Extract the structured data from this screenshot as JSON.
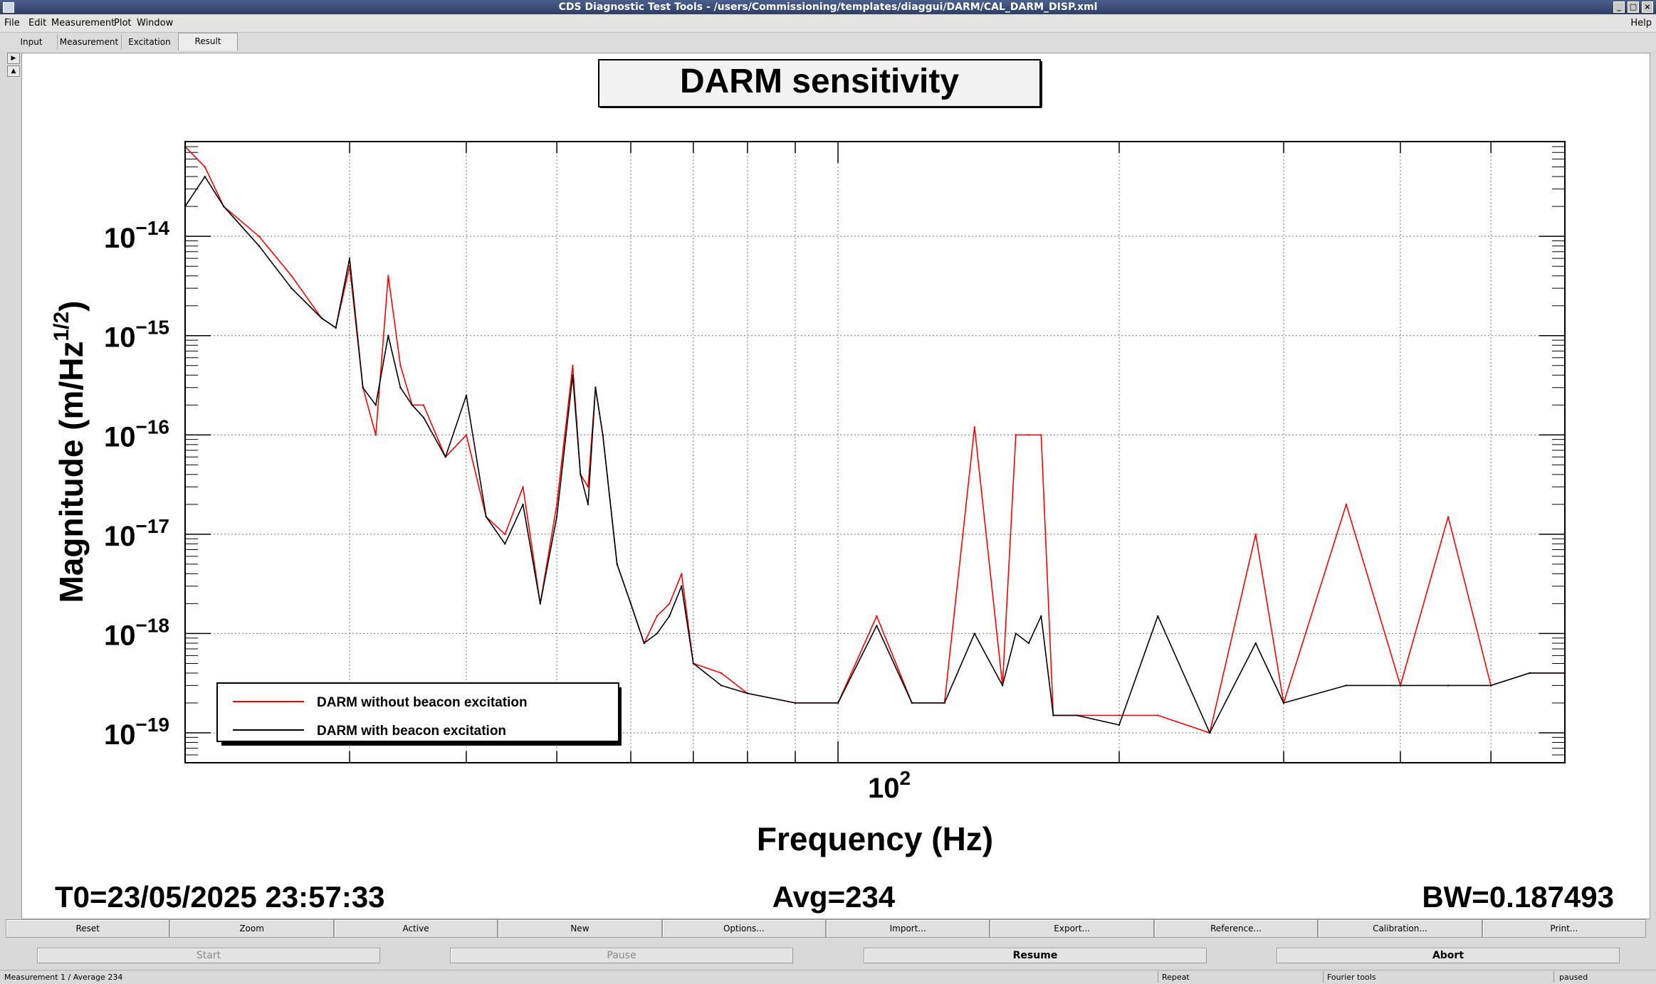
{
  "window": {
    "title": "CDS Diagnostic Test Tools - /users/Commissioning/templates/diaggui/DARM/CAL_DARM_DISP.xml"
  },
  "menu": {
    "items": [
      "File",
      "Edit",
      "Measurement",
      "Plot",
      "Window"
    ],
    "help": "Help"
  },
  "tabs": [
    "Input",
    "Measurement",
    "Excitation",
    "Result"
  ],
  "plot": {
    "title": "DARM sensitivity",
    "xlabel": "Frequency (Hz)",
    "ylabel_main": "Magnitude (m/Hz",
    "ylabel_sup": "1/2",
    "ylabel_close": ")",
    "x_tick_base": "10",
    "x_tick_exp": "2",
    "y_tick_base": "10",
    "y_tick_exps": [
      "−14",
      "−15",
      "−16",
      "−17",
      "−18",
      "−19"
    ],
    "info": {
      "t0": "T0=23/05/2025 23:57:33",
      "avg": "Avg=234",
      "bw": "BW=0.187493"
    }
  },
  "chart_data": {
    "type": "line",
    "title": "DARM sensitivity",
    "xlabel": "Frequency (Hz)",
    "ylabel": "Magnitude (m/Hz^1/2)",
    "xscale": "log",
    "yscale": "log",
    "xlim": [
      20,
      600
    ],
    "ylim": [
      5e-20,
      9e-14
    ],
    "grid": true,
    "legend_position": "bottom-left",
    "series": [
      {
        "name": "DARM without beacon excitation",
        "color": "#ff0000",
        "x": [
          20,
          21,
          22,
          24,
          26,
          28,
          29,
          30,
          31,
          32,
          33,
          34,
          35,
          36,
          38,
          40,
          42,
          44,
          46,
          48,
          50,
          52,
          53,
          54,
          55,
          56,
          58,
          60,
          62,
          64,
          66,
          68,
          70,
          75,
          80,
          90,
          100,
          110,
          120,
          130,
          140,
          150,
          155,
          160,
          165,
          170,
          180,
          200,
          220,
          250,
          280,
          300,
          350,
          400,
          450,
          500,
          550,
          600
        ],
        "y": [
          8e-14,
          5e-14,
          2e-14,
          1e-14,
          4e-15,
          1.5e-15,
          1.2e-15,
          5e-15,
          3e-16,
          1e-16,
          4e-15,
          5e-16,
          2e-16,
          2e-16,
          6e-17,
          1e-16,
          1.5e-17,
          1e-17,
          3e-17,
          2e-18,
          2e-17,
          5e-16,
          4e-17,
          3e-17,
          3e-16,
          1e-16,
          5e-18,
          2e-18,
          8e-19,
          1.5e-18,
          2e-18,
          4e-18,
          5e-19,
          4e-19,
          2.5e-19,
          2e-19,
          2e-19,
          1.5e-18,
          2e-19,
          2e-19,
          1.2e-16,
          3e-19,
          1e-16,
          1e-16,
          1e-16,
          1.5e-19,
          1.5e-19,
          1.5e-19,
          1.5e-19,
          1e-19,
          1e-17,
          2e-19,
          2e-17,
          3e-19,
          1.5e-17,
          3e-19,
          4e-19,
          4e-19
        ]
      },
      {
        "name": "DARM with beacon excitation",
        "color": "#000000",
        "x": [
          20,
          21,
          22,
          24,
          26,
          28,
          29,
          30,
          31,
          32,
          33,
          34,
          35,
          36,
          38,
          40,
          42,
          44,
          46,
          48,
          50,
          52,
          53,
          54,
          55,
          56,
          58,
          60,
          62,
          64,
          66,
          68,
          70,
          75,
          80,
          90,
          100,
          110,
          120,
          130,
          140,
          150,
          155,
          160,
          165,
          170,
          180,
          200,
          220,
          250,
          280,
          300,
          350,
          400,
          450,
          500,
          550,
          600
        ],
        "y": [
          2e-14,
          4e-14,
          2e-14,
          8e-15,
          3e-15,
          1.5e-15,
          1.2e-15,
          6e-15,
          3e-16,
          2e-16,
          1e-15,
          3e-16,
          2e-16,
          1.5e-16,
          6e-17,
          2.5e-16,
          1.5e-17,
          8e-18,
          2e-17,
          2e-18,
          1.5e-17,
          4e-16,
          4e-17,
          2e-17,
          3e-16,
          1e-16,
          5e-18,
          2e-18,
          8e-19,
          1e-18,
          1.5e-18,
          3e-18,
          5e-19,
          3e-19,
          2.5e-19,
          2e-19,
          2e-19,
          1.2e-18,
          2e-19,
          2e-19,
          1e-18,
          3e-19,
          1e-18,
          8e-19,
          1.5e-18,
          1.5e-19,
          1.5e-19,
          1.2e-19,
          1.5e-18,
          1e-19,
          8e-19,
          2e-19,
          3e-19,
          3e-19,
          3e-19,
          3e-19,
          4e-19,
          4e-19
        ]
      }
    ]
  },
  "toolbar": [
    "Reset",
    "Zoom",
    "Active",
    "New",
    "Options...",
    "Import...",
    "Export...",
    "Reference...",
    "Calibration...",
    "Print..."
  ],
  "controls": {
    "start": "Start",
    "pause": "Pause",
    "resume": "Resume",
    "abort": "Abort"
  },
  "statusbar": {
    "measurement": "Measurement 1 / Average 234",
    "repeat": "Repeat",
    "fourier": "Fourier tools",
    "state": "paused"
  }
}
